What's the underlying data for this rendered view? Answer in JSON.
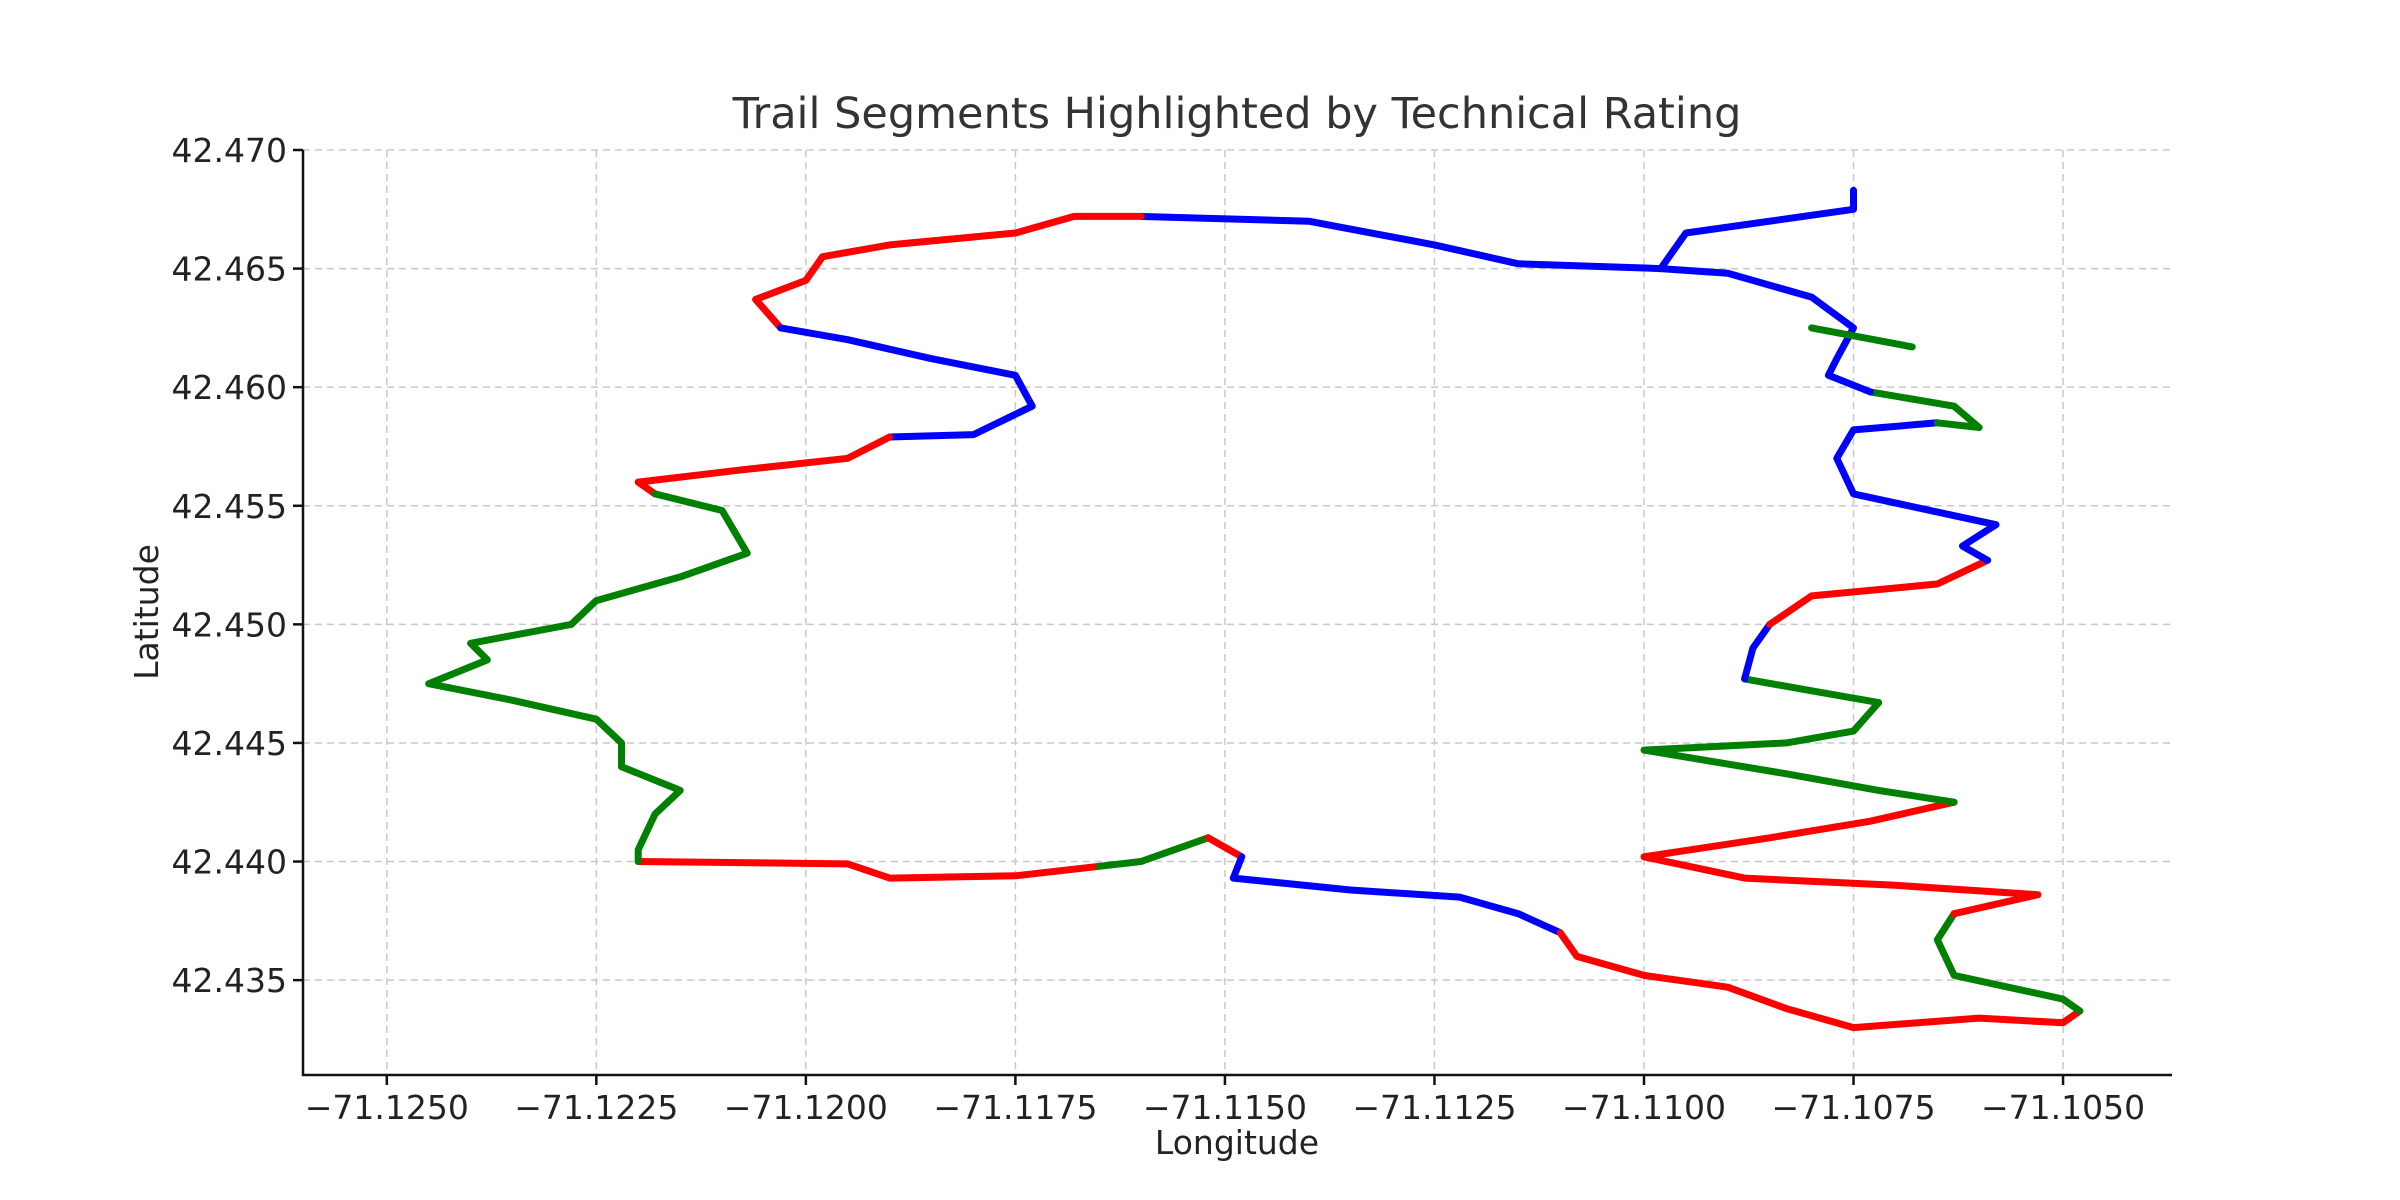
{
  "chart_data": {
    "type": "line",
    "title": "Trail Segments Highlighted by Technical Rating",
    "xlabel": "Longitude",
    "ylabel": "Latitude",
    "xlim": [
      -71.126,
      -71.1037
    ],
    "ylim": [
      42.431,
      42.47
    ],
    "xticks": [
      -71.125,
      -71.1225,
      -71.12,
      -71.1175,
      -71.115,
      -71.1125,
      -71.11,
      -71.1075,
      -71.105
    ],
    "xtick_labels": [
      "−71.1250",
      "−71.1225",
      "−71.1200",
      "−71.1175",
      "−71.1150",
      "−71.1125",
      "−71.1100",
      "−71.1075",
      "−71.1050"
    ],
    "yticks": [
      42.435,
      42.44,
      42.445,
      42.45,
      42.455,
      42.46,
      42.465,
      42.47
    ],
    "ytick_labels": [
      "42.435",
      "42.440",
      "42.445",
      "42.450",
      "42.455",
      "42.460",
      "42.465",
      "42.470"
    ],
    "grid": true,
    "colors": {
      "red": "#ff0000",
      "green": "#008000",
      "blue": "#0000ff"
    },
    "segments": [
      {
        "color": "red",
        "points": [
          [
            -71.122,
            42.44
          ],
          [
            -71.1195,
            42.4399
          ],
          [
            -71.119,
            42.4393
          ],
          [
            -71.1175,
            42.4394
          ],
          [
            -71.1165,
            42.4398
          ]
        ]
      },
      {
        "color": "green",
        "points": [
          [
            -71.1165,
            42.4398
          ],
          [
            -71.116,
            42.44
          ],
          [
            -71.1152,
            42.441
          ]
        ]
      },
      {
        "color": "red",
        "points": [
          [
            -71.1152,
            42.441
          ],
          [
            -71.1148,
            42.4402
          ]
        ]
      },
      {
        "color": "blue",
        "points": [
          [
            -71.1148,
            42.4402
          ],
          [
            -71.1149,
            42.4393
          ],
          [
            -71.1135,
            42.4388
          ],
          [
            -71.1122,
            42.4385
          ],
          [
            -71.1115,
            42.4378
          ],
          [
            -71.111,
            42.437
          ]
        ]
      },
      {
        "color": "red",
        "points": [
          [
            -71.111,
            42.437
          ],
          [
            -71.1108,
            42.436
          ],
          [
            -71.11,
            42.4352
          ],
          [
            -71.109,
            42.4347
          ],
          [
            -71.1083,
            42.4338
          ],
          [
            -71.1075,
            42.433
          ],
          [
            -71.106,
            42.4334
          ],
          [
            -71.105,
            42.4332
          ],
          [
            -71.1048,
            42.4337
          ]
        ]
      },
      {
        "color": "green",
        "points": [
          [
            -71.1048,
            42.4337
          ],
          [
            -71.105,
            42.4342
          ],
          [
            -71.1063,
            42.4352
          ],
          [
            -71.1065,
            42.4367
          ],
          [
            -71.1063,
            42.4378
          ]
        ]
      },
      {
        "color": "red",
        "points": [
          [
            -71.1063,
            42.4378
          ],
          [
            -71.1053,
            42.4386
          ],
          [
            -71.107,
            42.439
          ],
          [
            -71.1088,
            42.4393
          ],
          [
            -71.11,
            42.4402
          ],
          [
            -71.1085,
            42.441
          ],
          [
            -71.1073,
            42.4417
          ],
          [
            -71.1063,
            42.4425
          ]
        ]
      },
      {
        "color": "green",
        "points": [
          [
            -71.1063,
            42.4425
          ],
          [
            -71.1072,
            42.443
          ],
          [
            -71.1083,
            42.4437
          ],
          [
            -71.11,
            42.4447
          ],
          [
            -71.1083,
            42.445
          ],
          [
            -71.1075,
            42.4455
          ],
          [
            -71.1072,
            42.4467
          ],
          [
            -71.108,
            42.4472
          ],
          [
            -71.1088,
            42.4477
          ]
        ]
      },
      {
        "color": "blue",
        "points": [
          [
            -71.1088,
            42.4477
          ],
          [
            -71.1087,
            42.449
          ],
          [
            -71.1085,
            42.45
          ]
        ]
      },
      {
        "color": "red",
        "points": [
          [
            -71.1085,
            42.45
          ],
          [
            -71.108,
            42.4512
          ],
          [
            -71.1065,
            42.4517
          ],
          [
            -71.1059,
            42.4527
          ]
        ]
      },
      {
        "color": "blue",
        "points": [
          [
            -71.1059,
            42.4527
          ],
          [
            -71.1062,
            42.4533
          ],
          [
            -71.1058,
            42.4542
          ],
          [
            -71.1075,
            42.4555
          ],
          [
            -71.1077,
            42.457
          ],
          [
            -71.1075,
            42.4582
          ],
          [
            -71.1065,
            42.4585
          ]
        ]
      },
      {
        "color": "green",
        "points": [
          [
            -71.1065,
            42.4585
          ],
          [
            -71.106,
            42.4583
          ],
          [
            -71.1063,
            42.4592
          ],
          [
            -71.1073,
            42.4598
          ]
        ]
      },
      {
        "color": "blue",
        "points": [
          [
            -71.1073,
            42.4598
          ],
          [
            -71.1078,
            42.4605
          ],
          [
            -71.1077,
            42.4612
          ],
          [
            -71.1075,
            42.4625
          ],
          [
            -71.108,
            42.4638
          ],
          [
            -71.109,
            42.4648
          ],
          [
            -71.1098,
            42.465
          ]
        ]
      },
      {
        "color": "blue",
        "points": [
          [
            -71.1098,
            42.465
          ],
          [
            -71.1115,
            42.4652
          ],
          [
            -71.1125,
            42.466
          ],
          [
            -71.114,
            42.467
          ],
          [
            -71.116,
            42.4672
          ]
        ]
      },
      {
        "color": "red",
        "points": [
          [
            -71.116,
            42.4672
          ],
          [
            -71.1168,
            42.4672
          ],
          [
            -71.1175,
            42.4665
          ],
          [
            -71.119,
            42.466
          ],
          [
            -71.1198,
            42.4655
          ],
          [
            -71.12,
            42.4645
          ],
          [
            -71.1206,
            42.4637
          ],
          [
            -71.1203,
            42.4625
          ]
        ]
      },
      {
        "color": "blue",
        "points": [
          [
            -71.1203,
            42.4625
          ],
          [
            -71.1195,
            42.462
          ],
          [
            -71.1185,
            42.4612
          ],
          [
            -71.1175,
            42.4605
          ],
          [
            -71.1173,
            42.4592
          ],
          [
            -71.118,
            42.458
          ],
          [
            -71.119,
            42.4579
          ]
        ]
      },
      {
        "color": "red",
        "points": [
          [
            -71.119,
            42.4579
          ],
          [
            -71.1195,
            42.457
          ],
          [
            -71.1208,
            42.4565
          ],
          [
            -71.122,
            42.456
          ],
          [
            -71.1218,
            42.4555
          ]
        ]
      },
      {
        "color": "green",
        "points": [
          [
            -71.1218,
            42.4555
          ],
          [
            -71.121,
            42.4548
          ],
          [
            -71.1207,
            42.453
          ],
          [
            -71.1215,
            42.452
          ],
          [
            -71.1225,
            42.451
          ],
          [
            -71.1228,
            42.45
          ],
          [
            -71.124,
            42.4492
          ],
          [
            -71.1238,
            42.4485
          ],
          [
            -71.1245,
            42.4475
          ],
          [
            -71.1235,
            42.4468
          ],
          [
            -71.1225,
            42.446
          ],
          [
            -71.1222,
            42.445
          ],
          [
            -71.1222,
            42.444
          ],
          [
            -71.1215,
            42.443
          ],
          [
            -71.1218,
            42.442
          ],
          [
            -71.122,
            42.4405
          ],
          [
            -71.122,
            42.44
          ]
        ]
      },
      {
        "color": "blue",
        "points": [
          [
            -71.1098,
            42.465
          ],
          [
            -71.1095,
            42.4665
          ],
          [
            -71.1085,
            42.467
          ],
          [
            -71.1075,
            42.4675
          ],
          [
            -71.1075,
            42.4683
          ]
        ]
      },
      {
        "color": "green",
        "points": [
          [
            -71.108,
            42.4625
          ],
          [
            -71.1068,
            42.4617
          ]
        ]
      }
    ]
  }
}
